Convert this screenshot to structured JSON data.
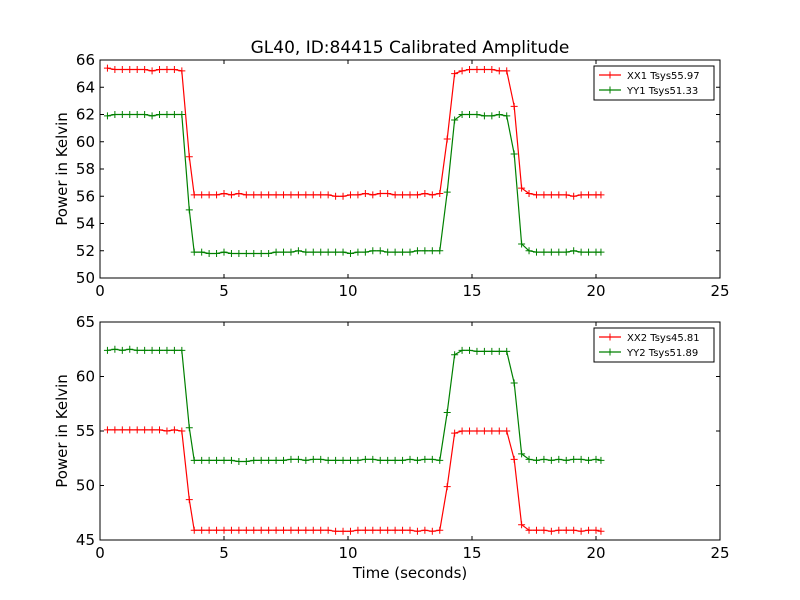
{
  "chart_data": [
    {
      "type": "line",
      "title": "GL40, ID:84415 Calibrated Amplitude",
      "xlabel": "",
      "ylabel": "Power in Kelvin",
      "xlim": [
        0,
        25
      ],
      "ylim": [
        50,
        66
      ],
      "xticks": [
        0,
        5,
        10,
        15,
        20,
        25
      ],
      "yticks": [
        50,
        52,
        54,
        56,
        58,
        60,
        62,
        64,
        66
      ],
      "legend_position": "top-right",
      "series": [
        {
          "name": "XX1 Tsys55.97",
          "color": "#ff0000",
          "x": [
            0.3,
            0.6,
            0.9,
            1.2,
            1.5,
            1.8,
            2.1,
            2.4,
            2.7,
            3.0,
            3.3,
            3.6,
            3.8,
            4.1,
            4.4,
            4.7,
            5.0,
            5.3,
            5.6,
            5.9,
            6.2,
            6.5,
            6.8,
            7.1,
            7.4,
            7.7,
            8.0,
            8.3,
            8.6,
            8.9,
            9.2,
            9.5,
            9.8,
            10.1,
            10.4,
            10.7,
            11.0,
            11.3,
            11.6,
            11.9,
            12.2,
            12.5,
            12.8,
            13.1,
            13.4,
            13.7,
            14.0,
            14.3,
            14.6,
            14.9,
            15.2,
            15.5,
            15.8,
            16.1,
            16.4,
            16.7,
            17.0,
            17.3,
            17.6,
            17.9,
            18.2,
            18.5,
            18.8,
            19.1,
            19.4,
            19.7,
            20.0,
            20.2
          ],
          "y": [
            65.4,
            65.3,
            65.3,
            65.3,
            65.3,
            65.3,
            65.2,
            65.3,
            65.3,
            65.3,
            65.2,
            58.9,
            56.1,
            56.1,
            56.1,
            56.1,
            56.2,
            56.1,
            56.2,
            56.1,
            56.1,
            56.1,
            56.1,
            56.1,
            56.1,
            56.1,
            56.1,
            56.1,
            56.1,
            56.1,
            56.1,
            56.0,
            56.0,
            56.1,
            56.1,
            56.2,
            56.1,
            56.2,
            56.2,
            56.1,
            56.1,
            56.1,
            56.1,
            56.2,
            56.1,
            56.2,
            60.2,
            65.0,
            65.2,
            65.3,
            65.3,
            65.3,
            65.3,
            65.2,
            65.2,
            62.6,
            56.6,
            56.2,
            56.1,
            56.1,
            56.1,
            56.1,
            56.1,
            56.0,
            56.1,
            56.1,
            56.1,
            56.1
          ]
        },
        {
          "name": "YY1 Tsys51.33",
          "color": "#008000",
          "x": [
            0.3,
            0.6,
            0.9,
            1.2,
            1.5,
            1.8,
            2.1,
            2.4,
            2.7,
            3.0,
            3.3,
            3.6,
            3.8,
            4.1,
            4.4,
            4.7,
            5.0,
            5.3,
            5.6,
            5.9,
            6.2,
            6.5,
            6.8,
            7.1,
            7.4,
            7.7,
            8.0,
            8.3,
            8.6,
            8.9,
            9.2,
            9.5,
            9.8,
            10.1,
            10.4,
            10.7,
            11.0,
            11.3,
            11.6,
            11.9,
            12.2,
            12.5,
            12.8,
            13.1,
            13.4,
            13.7,
            14.0,
            14.3,
            14.6,
            14.9,
            15.2,
            15.5,
            15.8,
            16.1,
            16.4,
            16.7,
            17.0,
            17.3,
            17.6,
            17.9,
            18.2,
            18.5,
            18.8,
            19.1,
            19.4,
            19.7,
            20.0,
            20.2
          ],
          "y": [
            61.9,
            62.0,
            62.0,
            62.0,
            62.0,
            62.0,
            61.9,
            62.0,
            62.0,
            62.0,
            62.0,
            55.0,
            51.9,
            51.9,
            51.8,
            51.8,
            51.9,
            51.8,
            51.8,
            51.8,
            51.8,
            51.8,
            51.8,
            51.9,
            51.9,
            51.9,
            52.0,
            51.9,
            51.9,
            51.9,
            51.9,
            51.9,
            51.9,
            51.8,
            51.9,
            51.9,
            52.0,
            52.0,
            51.9,
            51.9,
            51.9,
            51.9,
            52.0,
            52.0,
            52.0,
            52.0,
            56.3,
            61.6,
            62.0,
            62.0,
            62.0,
            61.9,
            61.9,
            62.0,
            61.9,
            59.1,
            52.5,
            52.0,
            51.9,
            51.9,
            51.9,
            51.9,
            51.9,
            52.0,
            51.9,
            51.9,
            51.9,
            51.9
          ]
        }
      ]
    },
    {
      "type": "line",
      "title": "",
      "xlabel": "Time (seconds)",
      "ylabel": "Power in Kelvin",
      "xlim": [
        0,
        25
      ],
      "ylim": [
        45,
        65
      ],
      "xticks": [
        0,
        5,
        10,
        15,
        20,
        25
      ],
      "yticks": [
        45,
        50,
        55,
        60,
        65
      ],
      "legend_position": "top-right",
      "series": [
        {
          "name": "XX2 Tsys45.81",
          "color": "#ff0000",
          "x": [
            0.3,
            0.6,
            0.9,
            1.2,
            1.5,
            1.8,
            2.1,
            2.4,
            2.7,
            3.0,
            3.3,
            3.6,
            3.8,
            4.1,
            4.4,
            4.7,
            5.0,
            5.3,
            5.6,
            5.9,
            6.2,
            6.5,
            6.8,
            7.1,
            7.4,
            7.7,
            8.0,
            8.3,
            8.6,
            8.9,
            9.2,
            9.5,
            9.8,
            10.1,
            10.4,
            10.7,
            11.0,
            11.3,
            11.6,
            11.9,
            12.2,
            12.5,
            12.8,
            13.1,
            13.4,
            13.7,
            14.0,
            14.3,
            14.6,
            14.9,
            15.2,
            15.5,
            15.8,
            16.1,
            16.4,
            16.7,
            17.0,
            17.3,
            17.6,
            17.9,
            18.2,
            18.5,
            18.8,
            19.1,
            19.4,
            19.7,
            20.0,
            20.2
          ],
          "y": [
            55.1,
            55.1,
            55.1,
            55.1,
            55.1,
            55.1,
            55.1,
            55.1,
            55.0,
            55.1,
            55.0,
            48.7,
            45.9,
            45.9,
            45.9,
            45.9,
            45.9,
            45.9,
            45.9,
            45.9,
            45.9,
            45.9,
            45.9,
            45.9,
            45.9,
            45.9,
            45.9,
            45.9,
            45.9,
            45.9,
            45.9,
            45.8,
            45.8,
            45.8,
            45.9,
            45.9,
            45.9,
            45.9,
            45.9,
            45.9,
            45.9,
            45.9,
            45.8,
            45.9,
            45.8,
            45.9,
            49.9,
            54.8,
            55.0,
            55.0,
            55.0,
            55.0,
            55.0,
            55.0,
            55.0,
            52.4,
            46.4,
            45.9,
            45.9,
            45.9,
            45.8,
            45.9,
            45.9,
            45.9,
            45.8,
            45.9,
            45.9,
            45.8
          ]
        },
        {
          "name": "YY2 Tsys51.89",
          "color": "#008000",
          "x": [
            0.3,
            0.6,
            0.9,
            1.2,
            1.5,
            1.8,
            2.1,
            2.4,
            2.7,
            3.0,
            3.3,
            3.6,
            3.8,
            4.1,
            4.4,
            4.7,
            5.0,
            5.3,
            5.6,
            5.9,
            6.2,
            6.5,
            6.8,
            7.1,
            7.4,
            7.7,
            8.0,
            8.3,
            8.6,
            8.9,
            9.2,
            9.5,
            9.8,
            10.1,
            10.4,
            10.7,
            11.0,
            11.3,
            11.6,
            11.9,
            12.2,
            12.5,
            12.8,
            13.1,
            13.4,
            13.7,
            14.0,
            14.3,
            14.6,
            14.9,
            15.2,
            15.5,
            15.8,
            16.1,
            16.4,
            16.7,
            17.0,
            17.3,
            17.6,
            17.9,
            18.2,
            18.5,
            18.8,
            19.1,
            19.4,
            19.7,
            20.0,
            20.2
          ],
          "y": [
            62.4,
            62.5,
            62.4,
            62.5,
            62.4,
            62.4,
            62.4,
            62.4,
            62.4,
            62.4,
            62.4,
            55.3,
            52.3,
            52.3,
            52.3,
            52.3,
            52.3,
            52.3,
            52.2,
            52.2,
            52.3,
            52.3,
            52.3,
            52.3,
            52.3,
            52.4,
            52.4,
            52.3,
            52.4,
            52.4,
            52.3,
            52.3,
            52.3,
            52.3,
            52.3,
            52.4,
            52.4,
            52.3,
            52.3,
            52.3,
            52.3,
            52.4,
            52.3,
            52.4,
            52.4,
            52.3,
            56.7,
            62.0,
            62.4,
            62.4,
            62.3,
            62.3,
            62.3,
            62.3,
            62.3,
            59.4,
            52.9,
            52.4,
            52.3,
            52.4,
            52.3,
            52.4,
            52.3,
            52.4,
            52.4,
            52.3,
            52.4,
            52.3
          ]
        }
      ]
    }
  ]
}
